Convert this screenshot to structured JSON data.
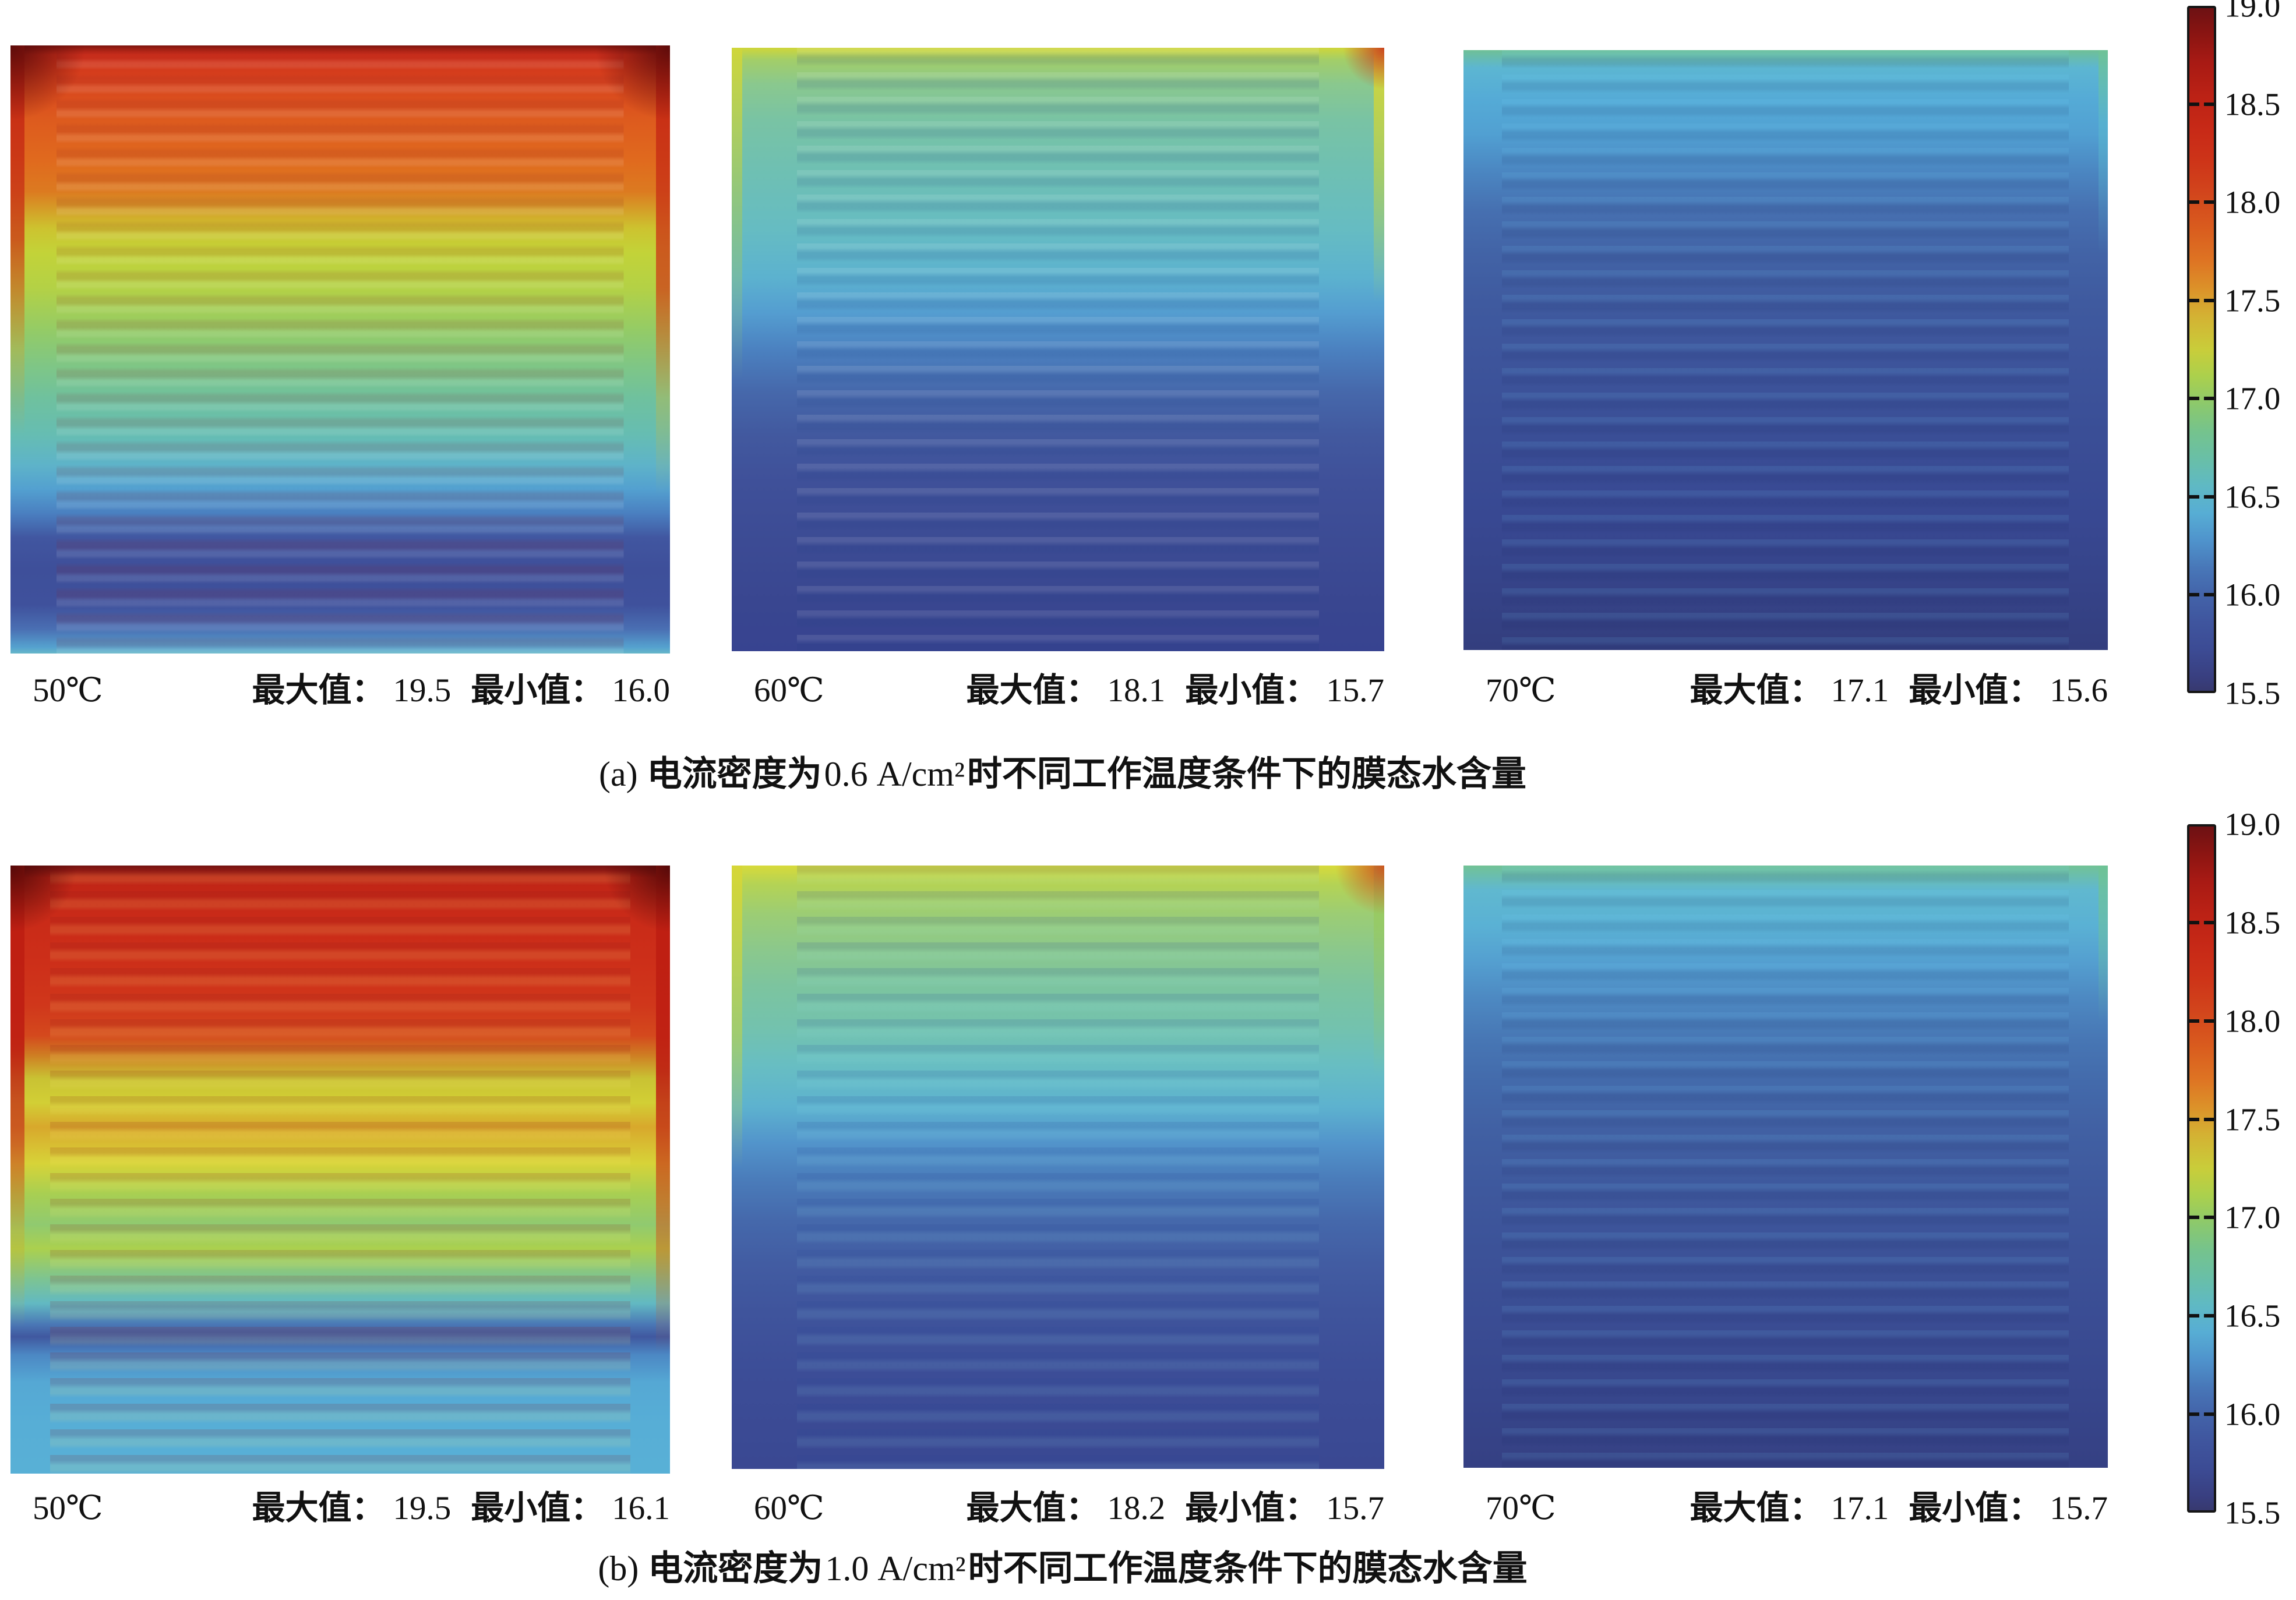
{
  "figure": {
    "panels": [
      {
        "caption": {
          "index": "(a)",
          "pre": "电流密度为",
          "value": "0.6 A/cm²",
          "post": "时不同工作温度条件下的膜态水含量"
        },
        "subplots": [
          {
            "temperature": "50℃",
            "max_label": "最大值：",
            "max": "19.5",
            "min_label": "最小值：",
            "min": "16.0"
          },
          {
            "temperature": "60℃",
            "max_label": "最大值：",
            "max": "18.1",
            "min_label": "最小值：",
            "min": "15.7"
          },
          {
            "temperature": "70℃",
            "max_label": "最大值：",
            "max": "17.1",
            "min_label": "最小值：",
            "min": "15.6"
          }
        ],
        "colorbar_ticks": [
          "19.0",
          "18.5",
          "18.0",
          "17.5",
          "17.0",
          "16.5",
          "16.0",
          "15.5"
        ]
      },
      {
        "caption": {
          "index": "(b)",
          "pre": "电流密度为",
          "value": "1.0 A/cm²",
          "post": "时不同工作温度条件下的膜态水含量"
        },
        "subplots": [
          {
            "temperature": "50℃",
            "max_label": "最大值：",
            "max": "19.5",
            "min_label": "最小值：",
            "min": "16.1"
          },
          {
            "temperature": "60℃",
            "max_label": "最大值：",
            "max": "18.2",
            "min_label": "最小值：",
            "min": "15.7"
          },
          {
            "temperature": "70℃",
            "max_label": "最大值：",
            "max": "17.1",
            "min_label": "最小值：",
            "min": "15.7"
          }
        ],
        "colorbar_ticks": [
          "19.0",
          "18.5",
          "18.0",
          "17.5",
          "17.0",
          "16.5",
          "16.0",
          "15.5"
        ]
      }
    ]
  },
  "chart_data": {
    "type": "heatmap",
    "title": "",
    "description": "Membrane water content distributions over a serpentine flow-field cell at three operating temperatures, for two current densities",
    "pattern": "horizontal serpentine flow-channel striping, water content decreasing from top (inlet) to bottom (outlet)",
    "colorbar": {
      "min": 15.5,
      "max": 19.0,
      "tick_values": [
        19.0,
        18.5,
        18.0,
        17.5,
        17.0,
        16.5,
        16.0,
        15.5
      ],
      "colormap_top_to_bottom": [
        "#6d1113",
        "#c82a17",
        "#d95b1e",
        "#dc9129",
        "#c9cd3a",
        "#8cc96c",
        "#69bfa7",
        "#57add4",
        "#4877b8",
        "#3f559e",
        "#393f80"
      ]
    },
    "panels": [
      {
        "label": "(a)",
        "current_density_A_per_cm2": 0.6,
        "caption": "(a) 电流密度为0.6 A/cm²时不同工作温度条件下的膜态水含量",
        "maps": [
          {
            "temperature_C": 50,
            "max": 19.5,
            "min": 16.0,
            "vertical_profile_top_to_bottom": [
              19.0,
              18.6,
              18.3,
              17.7,
              17.4,
              17.2,
              16.9,
              16.6,
              16.0,
              15.9,
              16.5
            ]
          },
          {
            "temperature_C": 60,
            "max": 18.1,
            "min": 15.7,
            "vertical_profile_top_to_bottom": [
              17.6,
              17.2,
              17.0,
              16.9,
              16.7,
              16.5,
              16.2,
              16.0,
              15.9,
              15.8,
              15.8
            ]
          },
          {
            "temperature_C": 70,
            "max": 17.1,
            "min": 15.6,
            "vertical_profile_top_to_bottom": [
              16.9,
              16.5,
              16.3,
              16.1,
              16.0,
              15.9,
              15.8,
              15.8,
              15.7,
              15.7,
              15.6
            ]
          }
        ]
      },
      {
        "label": "(b)",
        "current_density_A_per_cm2": 1.0,
        "caption": "(b) 电流密度为1.0 A/cm²时不同工作温度条件下的膜态水含量",
        "maps": [
          {
            "temperature_C": 50,
            "max": 19.5,
            "min": 16.1,
            "vertical_profile_top_to_bottom": [
              19.3,
              19.0,
              18.8,
              18.3,
              17.8,
              17.5,
              17.3,
              16.9,
              16.3,
              16.5,
              16.5
            ]
          },
          {
            "temperature_C": 60,
            "max": 18.2,
            "min": 15.7,
            "vertical_profile_top_to_bottom": [
              17.9,
              17.5,
              17.2,
              17.0,
              16.8,
              16.5,
              16.2,
              16.0,
              15.9,
              15.8,
              15.8
            ]
          },
          {
            "temperature_C": 70,
            "max": 17.1,
            "min": 15.7,
            "vertical_profile_top_to_bottom": [
              17.0,
              16.6,
              16.4,
              16.2,
              16.0,
              15.9,
              15.9,
              15.8,
              15.8,
              15.7,
              15.7
            ]
          }
        ]
      }
    ]
  }
}
